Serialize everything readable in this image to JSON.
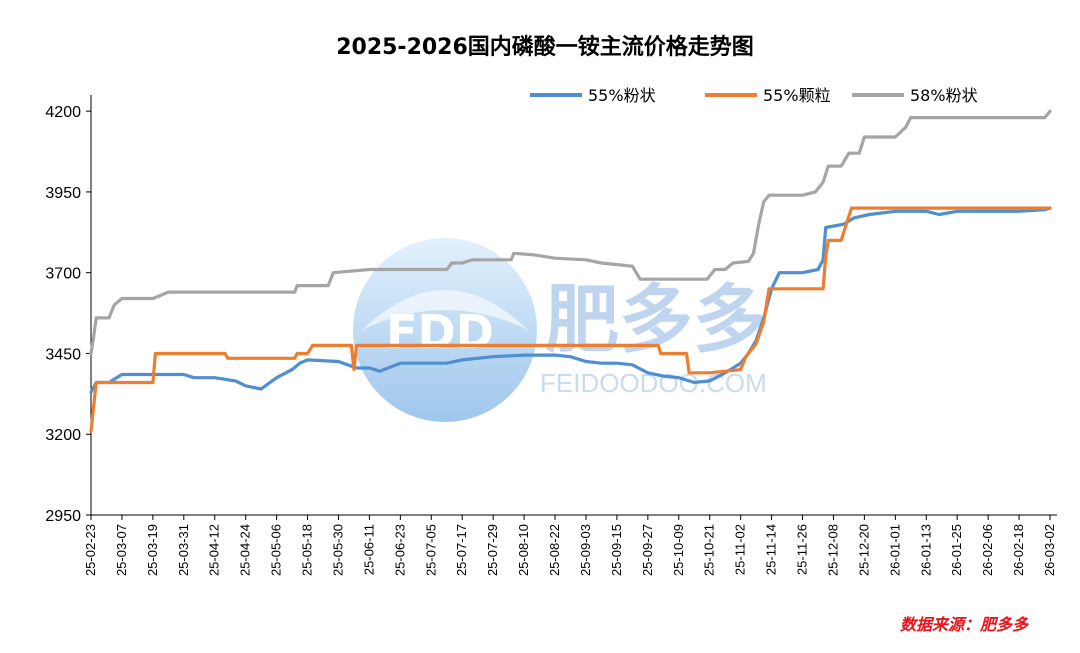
{
  "chart_data": {
    "type": "line",
    "title": "2025-2026国内磷酸一铵主流价格走势图",
    "xlabel": "",
    "ylabel": "",
    "ylim": [
      2950,
      4250
    ],
    "yticks": [
      2950,
      3200,
      3450,
      3700,
      3950,
      4200
    ],
    "grid": false,
    "legend_position": "top-right",
    "x_ticks": [
      "25-02-23",
      "25-03-07",
      "25-03-19",
      "25-03-31",
      "25-04-12",
      "25-04-24",
      "25-05-06",
      "25-05-18",
      "25-05-30",
      "25-06-11",
      "25-06-23",
      "25-07-05",
      "25-07-17",
      "25-07-29",
      "25-08-10",
      "25-08-22",
      "25-09-03",
      "25-09-15",
      "25-09-27",
      "25-10-09",
      "25-10-21",
      "25-11-02",
      "25-11-14",
      "25-11-26",
      "25-12-08",
      "25-12-20",
      "26-01-01",
      "26-01-13",
      "26-01-25",
      "26-02-06",
      "26-02-18",
      "26-03-02"
    ],
    "x_start": "2025-02-23",
    "series": [
      {
        "name": "55%粉状",
        "color": "#4f8ed0",
        "points": [
          [
            "2025-02-23",
            3330
          ],
          [
            "2025-02-25",
            3360
          ],
          [
            "2025-03-02",
            3360
          ],
          [
            "2025-03-07",
            3385
          ],
          [
            "2025-03-19",
            3385
          ],
          [
            "2025-03-31",
            3385
          ],
          [
            "2025-04-04",
            3375
          ],
          [
            "2025-04-12",
            3375
          ],
          [
            "2025-04-20",
            3365
          ],
          [
            "2025-04-24",
            3350
          ],
          [
            "2025-04-30",
            3340
          ],
          [
            "2025-05-06",
            3375
          ],
          [
            "2025-05-12",
            3400
          ],
          [
            "2025-05-15",
            3420
          ],
          [
            "2025-05-18",
            3430
          ],
          [
            "2025-05-30",
            3425
          ],
          [
            "2025-06-06",
            3405
          ],
          [
            "2025-06-11",
            3405
          ],
          [
            "2025-06-15",
            3395
          ],
          [
            "2025-06-23",
            3420
          ],
          [
            "2025-07-05",
            3420
          ],
          [
            "2025-07-11",
            3420
          ],
          [
            "2025-07-17",
            3430
          ],
          [
            "2025-07-29",
            3440
          ],
          [
            "2025-08-10",
            3445
          ],
          [
            "2025-08-22",
            3445
          ],
          [
            "2025-08-28",
            3440
          ],
          [
            "2025-09-03",
            3425
          ],
          [
            "2025-09-09",
            3420
          ],
          [
            "2025-09-15",
            3420
          ],
          [
            "2025-09-21",
            3415
          ],
          [
            "2025-09-27",
            3390
          ],
          [
            "2025-10-03",
            3380
          ],
          [
            "2025-10-09",
            3375
          ],
          [
            "2025-10-15",
            3360
          ],
          [
            "2025-10-21",
            3365
          ],
          [
            "2025-10-27",
            3390
          ],
          [
            "2025-11-02",
            3420
          ],
          [
            "2025-11-05",
            3450
          ],
          [
            "2025-11-08",
            3490
          ],
          [
            "2025-11-11",
            3560
          ],
          [
            "2025-11-14",
            3650
          ],
          [
            "2025-11-17",
            3700
          ],
          [
            "2025-11-26",
            3700
          ],
          [
            "2025-12-02",
            3710
          ],
          [
            "2025-12-04",
            3740
          ],
          [
            "2025-12-05",
            3840
          ],
          [
            "2025-12-12",
            3850
          ],
          [
            "2025-12-16",
            3870
          ],
          [
            "2025-12-22",
            3880
          ],
          [
            "2026-01-01",
            3890
          ],
          [
            "2026-01-13",
            3890
          ],
          [
            "2026-01-18",
            3880
          ],
          [
            "2026-01-25",
            3890
          ],
          [
            "2026-02-06",
            3890
          ],
          [
            "2026-02-18",
            3890
          ],
          [
            "2026-02-28",
            3895
          ],
          [
            "2026-03-02",
            3900
          ]
        ]
      },
      {
        "name": "55%颗粒",
        "color": "#ed7d31",
        "points": [
          [
            "2025-02-23",
            3210
          ],
          [
            "2025-02-25",
            3360
          ],
          [
            "2025-03-02",
            3360
          ],
          [
            "2025-03-07",
            3360
          ],
          [
            "2025-03-19",
            3360
          ],
          [
            "2025-03-20",
            3450
          ],
          [
            "2025-03-31",
            3450
          ],
          [
            "2025-04-12",
            3450
          ],
          [
            "2025-04-16",
            3450
          ],
          [
            "2025-04-17",
            3435
          ],
          [
            "2025-04-24",
            3435
          ],
          [
            "2025-05-06",
            3435
          ],
          [
            "2025-05-13",
            3435
          ],
          [
            "2025-05-14",
            3450
          ],
          [
            "2025-05-18",
            3450
          ],
          [
            "2025-05-20",
            3475
          ],
          [
            "2025-05-30",
            3475
          ],
          [
            "2025-06-04",
            3475
          ],
          [
            "2025-06-05",
            3400
          ],
          [
            "2025-06-06",
            3475
          ],
          [
            "2025-06-11",
            3475
          ],
          [
            "2025-06-23",
            3475
          ],
          [
            "2025-07-05",
            3475
          ],
          [
            "2025-07-17",
            3475
          ],
          [
            "2025-07-29",
            3475
          ],
          [
            "2025-08-10",
            3475
          ],
          [
            "2025-08-22",
            3475
          ],
          [
            "2025-09-03",
            3475
          ],
          [
            "2025-09-15",
            3475
          ],
          [
            "2025-09-27",
            3475
          ],
          [
            "2025-10-01",
            3475
          ],
          [
            "2025-10-02",
            3450
          ],
          [
            "2025-10-12",
            3450
          ],
          [
            "2025-10-13",
            3390
          ],
          [
            "2025-10-21",
            3390
          ],
          [
            "2025-11-02",
            3400
          ],
          [
            "2025-11-04",
            3440
          ],
          [
            "2025-11-08",
            3480
          ],
          [
            "2025-11-11",
            3550
          ],
          [
            "2025-11-13",
            3650
          ],
          [
            "2025-11-26",
            3650
          ],
          [
            "2025-12-04",
            3650
          ],
          [
            "2025-12-05",
            3750
          ],
          [
            "2025-12-06",
            3800
          ],
          [
            "2025-12-11",
            3800
          ],
          [
            "2025-12-13",
            3850
          ],
          [
            "2025-12-15",
            3900
          ],
          [
            "2026-01-01",
            3900
          ],
          [
            "2026-01-13",
            3900
          ],
          [
            "2026-01-25",
            3900
          ],
          [
            "2026-02-06",
            3900
          ],
          [
            "2026-02-18",
            3900
          ],
          [
            "2026-03-02",
            3900
          ]
        ]
      },
      {
        "name": "58%粉状",
        "color": "#a5a5a5",
        "points": [
          [
            "2025-02-23",
            3450
          ],
          [
            "2025-02-24",
            3500
          ],
          [
            "2025-02-25",
            3560
          ],
          [
            "2025-03-02",
            3560
          ],
          [
            "2025-03-04",
            3600
          ],
          [
            "2025-03-07",
            3620
          ],
          [
            "2025-03-19",
            3620
          ],
          [
            "2025-03-25",
            3640
          ],
          [
            "2025-03-31",
            3640
          ],
          [
            "2025-04-12",
            3640
          ],
          [
            "2025-04-24",
            3640
          ],
          [
            "2025-05-06",
            3640
          ],
          [
            "2025-05-13",
            3640
          ],
          [
            "2025-05-14",
            3660
          ],
          [
            "2025-05-26",
            3660
          ],
          [
            "2025-05-28",
            3700
          ],
          [
            "2025-06-11",
            3710
          ],
          [
            "2025-06-23",
            3710
          ],
          [
            "2025-07-05",
            3710
          ],
          [
            "2025-07-11",
            3710
          ],
          [
            "2025-07-13",
            3730
          ],
          [
            "2025-07-17",
            3730
          ],
          [
            "2025-07-21",
            3740
          ],
          [
            "2025-08-05",
            3740
          ],
          [
            "2025-08-06",
            3760
          ],
          [
            "2025-08-14",
            3755
          ],
          [
            "2025-08-22",
            3745
          ],
          [
            "2025-09-03",
            3740
          ],
          [
            "2025-09-09",
            3730
          ],
          [
            "2025-09-21",
            3720
          ],
          [
            "2025-09-24",
            3680
          ],
          [
            "2025-10-09",
            3680
          ],
          [
            "2025-10-20",
            3680
          ],
          [
            "2025-10-23",
            3710
          ],
          [
            "2025-10-27",
            3710
          ],
          [
            "2025-10-30",
            3730
          ],
          [
            "2025-11-05",
            3735
          ],
          [
            "2025-11-07",
            3760
          ],
          [
            "2025-11-09",
            3850
          ],
          [
            "2025-11-11",
            3920
          ],
          [
            "2025-11-13",
            3940
          ],
          [
            "2025-11-26",
            3940
          ],
          [
            "2025-12-01",
            3950
          ],
          [
            "2025-12-04",
            3980
          ],
          [
            "2025-12-06",
            4030
          ],
          [
            "2025-12-11",
            4030
          ],
          [
            "2025-12-14",
            4070
          ],
          [
            "2025-12-18",
            4070
          ],
          [
            "2025-12-20",
            4120
          ],
          [
            "2026-01-01",
            4120
          ],
          [
            "2026-01-05",
            4150
          ],
          [
            "2026-01-07",
            4180
          ],
          [
            "2026-01-13",
            4180
          ],
          [
            "2026-01-25",
            4180
          ],
          [
            "2026-02-06",
            4180
          ],
          [
            "2026-02-18",
            4180
          ],
          [
            "2026-02-28",
            4180
          ],
          [
            "2026-03-02",
            4200
          ]
        ]
      }
    ],
    "source": "数据来源：肥多多",
    "watermark": {
      "logo_text": "FDD",
      "cn_text": "肥多多",
      "url": "FEIDOODOO.COM"
    }
  }
}
